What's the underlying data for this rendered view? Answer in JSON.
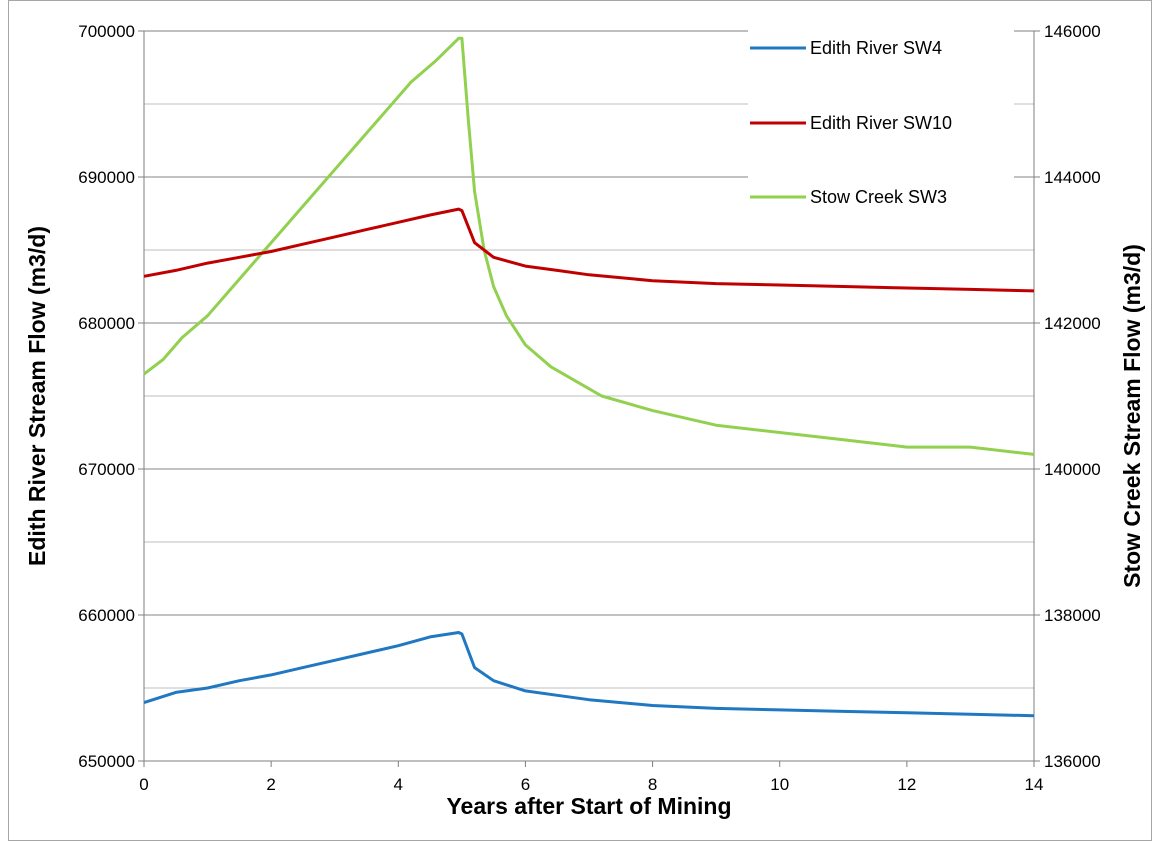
{
  "chart_data": {
    "type": "line",
    "title": "",
    "xlabel": "Years after Start of Mining",
    "ylabel": "Edith River Stream Flow (m3/d)",
    "y2label": "Stow Creek Stream Flow (m3/d)",
    "xlim": [
      0,
      14
    ],
    "ylim": [
      650000,
      700000
    ],
    "y2lim": [
      136000,
      146000
    ],
    "xticks": [
      "0",
      "2",
      "4",
      "6",
      "8",
      "10",
      "12",
      "14"
    ],
    "yticks": [
      "650000",
      "660000",
      "670000",
      "680000",
      "690000",
      "700000"
    ],
    "y2ticks": [
      "136000",
      "138000",
      "140000",
      "142000",
      "144000",
      "146000"
    ],
    "grid": true,
    "legend_position": "top-right",
    "series": [
      {
        "name": "Edith River SW4",
        "color": "#1f78c1",
        "axis": "left",
        "x": [
          0,
          0.5,
          1,
          1.5,
          2,
          2.5,
          3,
          3.5,
          4,
          4.5,
          4.95,
          5.0,
          5.2,
          5.5,
          6,
          6.5,
          7,
          8,
          9,
          10,
          11,
          12,
          13,
          14
        ],
        "values": [
          654000,
          654700,
          655000,
          655500,
          655900,
          656400,
          656900,
          657400,
          657900,
          658500,
          658800,
          658700,
          656400,
          655500,
          654800,
          654500,
          654200,
          653800,
          653600,
          653500,
          653400,
          653300,
          653200,
          653100
        ]
      },
      {
        "name": "Edith River SW10",
        "color": "#c00000",
        "axis": "left",
        "x": [
          0,
          0.5,
          1,
          1.5,
          2,
          2.5,
          3,
          3.5,
          4,
          4.5,
          4.95,
          5.0,
          5.2,
          5.5,
          6,
          6.5,
          7,
          8,
          9,
          10,
          11,
          12,
          13,
          14
        ],
        "values": [
          683200,
          683600,
          684100,
          684500,
          684900,
          685400,
          685900,
          686400,
          686900,
          687400,
          687800,
          687700,
          685500,
          684500,
          683900,
          683600,
          683300,
          682900,
          682700,
          682600,
          682500,
          682400,
          682300,
          682200
        ]
      },
      {
        "name": "Stow Creek SW3",
        "color": "#92d050",
        "axis": "right",
        "x": [
          0,
          0.3,
          0.6,
          1.0,
          1.4,
          1.8,
          2.2,
          2.6,
          3.0,
          3.4,
          3.8,
          4.2,
          4.6,
          4.95,
          5.0,
          5.1,
          5.2,
          5.35,
          5.5,
          5.7,
          6.0,
          6.4,
          6.8,
          7.2,
          8.0,
          9.0,
          10.0,
          11.0,
          12.0,
          13.0,
          14.0
        ],
        "values": [
          141300,
          141500,
          141800,
          142100,
          142500,
          142900,
          143300,
          143700,
          144100,
          144500,
          144900,
          145300,
          145600,
          145900,
          145900,
          144800,
          143800,
          143000,
          142500,
          142100,
          141700,
          141400,
          141200,
          141000,
          140800,
          140600,
          140500,
          140400,
          140300,
          140300,
          140200
        ]
      }
    ]
  }
}
